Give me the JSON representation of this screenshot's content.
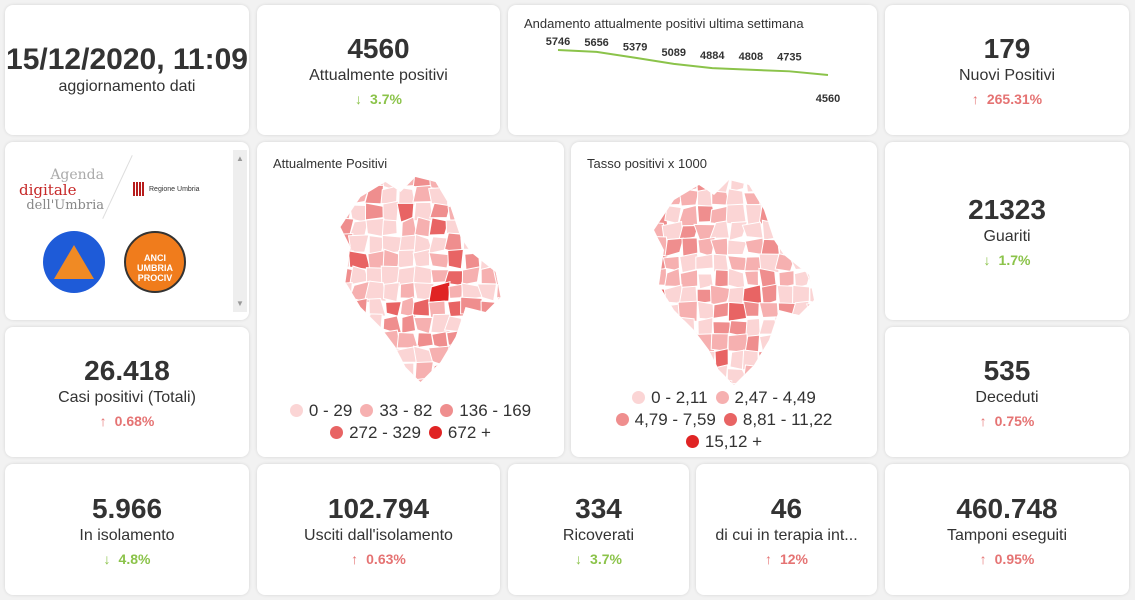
{
  "update": {
    "datetime": "15/12/2020, 11:09",
    "label": "aggiornamento dati"
  },
  "kpis": {
    "attuali": {
      "value": "4560",
      "label": "Attualmente positivi",
      "delta": "3.7%",
      "dir": "down"
    },
    "nuovi": {
      "value": "179",
      "label": "Nuovi Positivi",
      "delta": "265.31%",
      "dir": "up"
    },
    "guariti": {
      "value": "21323",
      "label": "Guariti",
      "delta": "1.7%",
      "dir": "down"
    },
    "casi": {
      "value": "26.418",
      "label": "Casi positivi (Totali)",
      "delta": "0.68%",
      "dir": "up"
    },
    "deceduti": {
      "value": "535",
      "label": "Deceduti",
      "delta": "0.75%",
      "dir": "up"
    },
    "isolamento": {
      "value": "5.966",
      "label": "In isolamento",
      "delta": "4.8%",
      "dir": "down"
    },
    "usciti": {
      "value": "102.794",
      "label": "Usciti dall'isolamento",
      "delta": "0.63%",
      "dir": "up"
    },
    "ricoverati": {
      "value": "334",
      "label": "Ricoverati",
      "delta": "3.7%",
      "dir": "down"
    },
    "terapia": {
      "value": "46",
      "label": "di cui in terapia int...",
      "delta": "12%",
      "dir": "up"
    },
    "tamponi": {
      "value": "460.748",
      "label": "Tamponi eseguiti",
      "delta": "0.95%",
      "dir": "up"
    }
  },
  "chart_data": {
    "type": "line",
    "title": "Andamento attualmente positivi ultima settimana",
    "values": [
      5746,
      5656,
      5379,
      5089,
      4884,
      4808,
      4735,
      4560
    ],
    "color": "#8bc34a"
  },
  "logos": {
    "agenda1": "Agenda",
    "agenda2": "digitale",
    "agenda3": "dell'Umbria",
    "regione": "Regione Umbria",
    "protezione": "Protezione Civile",
    "anci": "ANCI UMBRIA PROCIV"
  },
  "map1": {
    "title": "Attualmente Positivi",
    "legend": [
      {
        "label": "0 - 29",
        "color": "#fbd5d5"
      },
      {
        "label": "33 - 82",
        "color": "#f6b0b0"
      },
      {
        "label": "136 - 169",
        "color": "#ef8e8e"
      },
      {
        "label": "272 - 329",
        "color": "#e86464"
      },
      {
        "label": "672 +",
        "color": "#e02424"
      }
    ]
  },
  "map2": {
    "title": "Tasso positivi x 1000",
    "legend": [
      {
        "label": "0 - 2,11",
        "color": "#fbd5d5"
      },
      {
        "label": "2,47 - 4,49",
        "color": "#f6b0b0"
      },
      {
        "label": "4,79 - 7,59",
        "color": "#ef8e8e"
      },
      {
        "label": "8,81 - 11,22",
        "color": "#e86464"
      },
      {
        "label": "15,12 +",
        "color": "#e02424"
      }
    ]
  }
}
